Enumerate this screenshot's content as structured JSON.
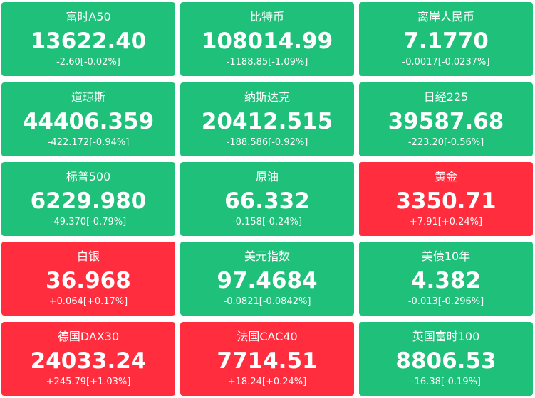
{
  "colors": {
    "down": "#1fc07a",
    "up": "#ff2d3d",
    "text": "#ffffff"
  },
  "quotes": [
    {
      "name": "富时A50",
      "value": "13622.40",
      "change": "-2.60[-0.02%]",
      "trend": "down"
    },
    {
      "name": "比特币",
      "value": "108014.99",
      "change": "-1188.85[-1.09%]",
      "trend": "down"
    },
    {
      "name": "离岸人民币",
      "value": "7.1770",
      "change": "-0.0017[-0.0237%]",
      "trend": "down"
    },
    {
      "name": "道琼斯",
      "value": "44406.359",
      "change": "-422.172[-0.94%]",
      "trend": "down"
    },
    {
      "name": "纳斯达克",
      "value": "20412.515",
      "change": "-188.586[-0.92%]",
      "trend": "down"
    },
    {
      "name": "日经225",
      "value": "39587.68",
      "change": "-223.20[-0.56%]",
      "trend": "down"
    },
    {
      "name": "标普500",
      "value": "6229.980",
      "change": "-49.370[-0.79%]",
      "trend": "down"
    },
    {
      "name": "原油",
      "value": "66.332",
      "change": "-0.158[-0.24%]",
      "trend": "down"
    },
    {
      "name": "黄金",
      "value": "3350.71",
      "change": "+7.91[+0.24%]",
      "trend": "up"
    },
    {
      "name": "白银",
      "value": "36.968",
      "change": "+0.064[+0.17%]",
      "trend": "up"
    },
    {
      "name": "美元指数",
      "value": "97.4684",
      "change": "-0.0821[-0.0842%]",
      "trend": "down"
    },
    {
      "name": "美债10年",
      "value": "4.382",
      "change": "-0.013[-0.296%]",
      "trend": "down"
    },
    {
      "name": "德国DAX30",
      "value": "24033.24",
      "change": "+245.79[+1.03%]",
      "trend": "up"
    },
    {
      "name": "法国CAC40",
      "value": "7714.51",
      "change": "+18.24[+0.24%]",
      "trend": "up"
    },
    {
      "name": "英国富时100",
      "value": "8806.53",
      "change": "-16.38[-0.19%]",
      "trend": "down"
    }
  ]
}
